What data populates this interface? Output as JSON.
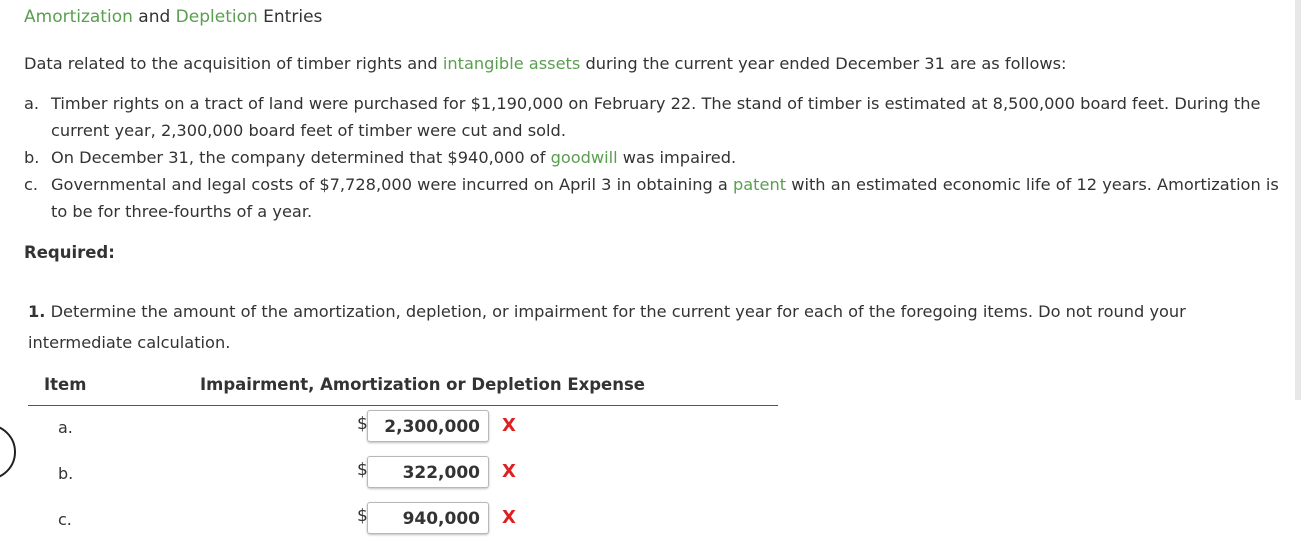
{
  "title": {
    "part1": "Amortization",
    "and": " and ",
    "part2": "Depletion",
    "part3": " Entries"
  },
  "intro": {
    "before": "Data related to the acquisition of timber rights and ",
    "link": "intangible assets",
    "after": " during the current year ended December 31 are as follows:"
  },
  "items": [
    {
      "marker": "a.",
      "text": "Timber rights on a tract of land were purchased for $1,190,000 on February 22. The stand of timber is estimated at 8,500,000 board feet. During the current year, 2,300,000 board feet of timber were cut and sold."
    },
    {
      "marker": "b.",
      "before": "On December 31, the company determined that $940,000 of ",
      "link": "goodwill",
      "after": " was impaired."
    },
    {
      "marker": "c.",
      "before": "Governmental and legal costs of $7,728,000 were incurred on April 3 in obtaining a ",
      "link": "patent",
      "after": " with an estimated economic life of 12 years. Amortization is to be for three-fourths of a year."
    }
  ],
  "required_label": "Required:",
  "question": {
    "number": "1.",
    "text": " Determine the amount of the amortization, depletion, or impairment for the current year for each of the foregoing items. Do not round your intermediate calculation."
  },
  "table": {
    "header_item": "Item",
    "header_expense": "Impairment, Amortization or Depletion Expense",
    "currency": "$",
    "rows": [
      {
        "label": "a.",
        "value": "2,300,000",
        "mark": "X"
      },
      {
        "label": "b.",
        "value": "322,000",
        "mark": "X"
      },
      {
        "label": "c.",
        "value": "940,000",
        "mark": "X"
      }
    ]
  },
  "colors": {
    "link_green": "#5a9e50",
    "error_red": "#e02020",
    "text": "#333333"
  }
}
